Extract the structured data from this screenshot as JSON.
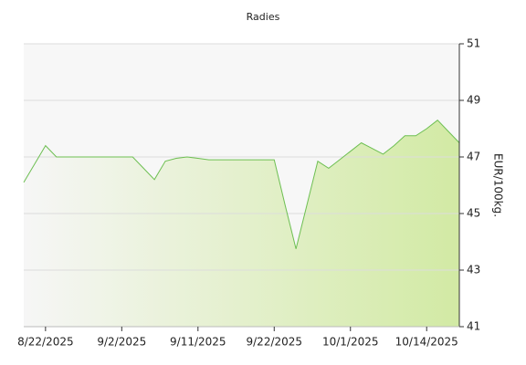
{
  "chart_data": {
    "type": "area",
    "title": "Radies",
    "y_label": "EUR/100kg.",
    "categories": [
      null,
      null,
      "8/22/2025",
      null,
      null,
      null,
      null,
      null,
      null,
      "9/2/2025",
      null,
      null,
      null,
      null,
      null,
      null,
      "9/11/2025",
      null,
      null,
      null,
      null,
      null,
      null,
      "9/22/2025",
      null,
      null,
      null,
      null,
      null,
      null,
      "10/1/2025",
      null,
      null,
      null,
      null,
      null,
      null,
      "10/14/2025",
      null,
      null,
      null
    ],
    "series": [
      {
        "color": "#6dbf52",
        "values": [
          46.1,
          46.75,
          47.4,
          47.0,
          47.0,
          47.0,
          47.0,
          47.0,
          47.0,
          47.0,
          47.0,
          46.6,
          46.2,
          46.85,
          46.95,
          47.0,
          46.95,
          46.9,
          46.9,
          46.9,
          46.9,
          46.9,
          46.9,
          46.9,
          45.3,
          43.75,
          45.3,
          46.85,
          46.6,
          46.9,
          47.2,
          47.5,
          47.3,
          47.1,
          47.4,
          47.75,
          47.75,
          48.0,
          48.3,
          47.9,
          47.5
        ]
      }
    ],
    "ylim": [
      41,
      51
    ],
    "yticks": [
      41,
      43,
      45,
      47,
      49,
      51
    ],
    "grid": true
  }
}
